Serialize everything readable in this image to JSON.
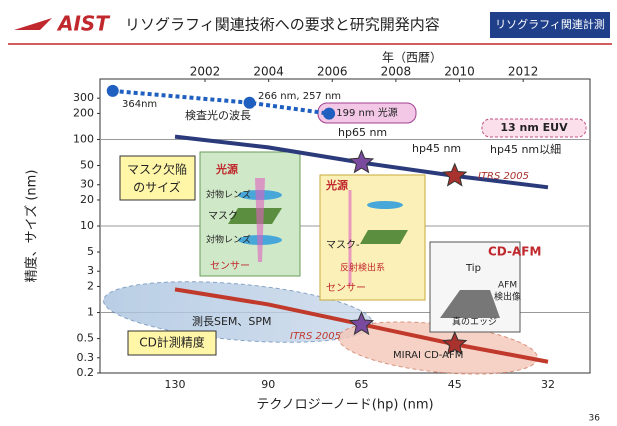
{
  "header": {
    "logo": "AIST",
    "title": "リソグラフィ関連技術への要求と研究開発内容",
    "tag": "リソグラフィ関連計測"
  },
  "chart_data": {
    "type": "line",
    "x_label": "テクノロジーノード(hp) (nm)",
    "x2_label": "年（西暦）",
    "y_label": "精度、サイズ (nm)",
    "categories": [
      "130",
      "90",
      "65",
      "45",
      "32"
    ],
    "x2lim": [
      1998.7,
      2014.1
    ],
    "x2ticks": [
      2002,
      2004,
      2006,
      2008,
      2010,
      2012
    ],
    "ylim": [
      0.2,
      500
    ],
    "yticks": [
      0.2,
      0.3,
      0.5,
      1,
      2,
      3,
      5,
      10,
      20,
      30,
      50,
      100,
      200,
      300
    ],
    "log_y": true,
    "grid": true,
    "series": [
      {
        "name": "ITRS 2005",
        "color": "#2b3a7a",
        "values": [
          108,
          81,
          54,
          38,
          28
        ]
      },
      {
        "name": "ITRS 2005",
        "color": "#c0392b",
        "values": [
          1.85,
          1.24,
          0.73,
          0.43,
          0.27
        ]
      },
      {
        "name": "検査光の波長",
        "color": "#1f5fbf",
        "x": [
          1999.1,
          2003.4,
          2005.9
        ],
        "values": [
          364,
          266,
          199
        ],
        "value_labels": [
          "364nm",
          "266 nm, 257 nm",
          "199 nm 光源"
        ]
      }
    ],
    "stars": [
      {
        "category": "65",
        "color": "#7a4a9e"
      },
      {
        "category": "45",
        "color": "#a8322d"
      }
    ],
    "annotations": {
      "hp65": "hp65 nm",
      "hp45": "hp45 nm",
      "euv": "13 nm EUV",
      "hp45fine": "hp45 nm以細",
      "defect1": "マスク欠陥",
      "defect2": "のサイズ",
      "src1": "光源",
      "lens1": "対物レンズ",
      "mask1": "マスク",
      "lens2": "対物レンズ",
      "sensor1": "センサー",
      "src2": "光源",
      "mask2": "マスク-",
      "refl": "反射検出系",
      "sensor2": "センサー",
      "cdafm": "CD-AFM",
      "tip": "Tip",
      "afm1": "AFM",
      "afm2": "検出像",
      "edge": "真のエッジ",
      "sem": "測長SEM、SPM",
      "cdacc": "CD計測精度",
      "mirai": "MIRAI  CD-AFM"
    }
  },
  "page_number": "36"
}
